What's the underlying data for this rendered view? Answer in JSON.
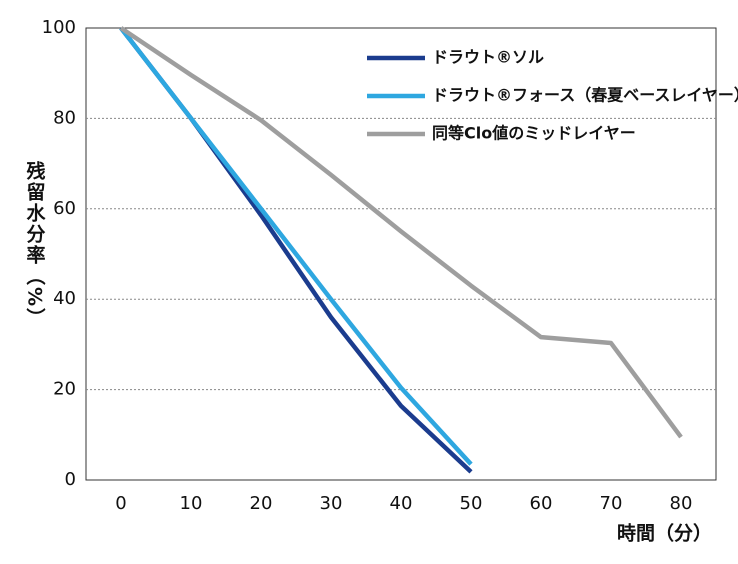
{
  "chart_data": {
    "type": "line",
    "ylabel": "残留水分率（%）",
    "xlabel": "時間（分）",
    "x": [
      0,
      10,
      20,
      30,
      40,
      50,
      60,
      70,
      80
    ],
    "series": [
      {
        "name": "ドラウト®ソル",
        "color": "#1b3c8e",
        "values": [
          100,
          80,
          58.6,
          36,
          16.4,
          1.8,
          null,
          null,
          null
        ]
      },
      {
        "name": "ドラウト®フォース（春夏ベースレイヤー）",
        "color": "#2ea7e0",
        "values": [
          100,
          80,
          60,
          40,
          20.4,
          3.5,
          null,
          null,
          null
        ]
      },
      {
        "name": "同等Clo値のミッドレイヤー",
        "color": "#9e9e9e",
        "values": [
          100,
          89.6,
          79.6,
          67.5,
          55,
          43,
          31.6,
          30.3,
          9.5
        ]
      }
    ],
    "xlim": [
      -5,
      85
    ],
    "xticks": [
      0,
      10,
      20,
      30,
      40,
      50,
      60,
      70,
      80
    ],
    "ylim": [
      0,
      100
    ],
    "yticks": [
      0,
      20,
      40,
      60,
      80,
      100
    ],
    "grid": true,
    "legend": "upper right"
  }
}
